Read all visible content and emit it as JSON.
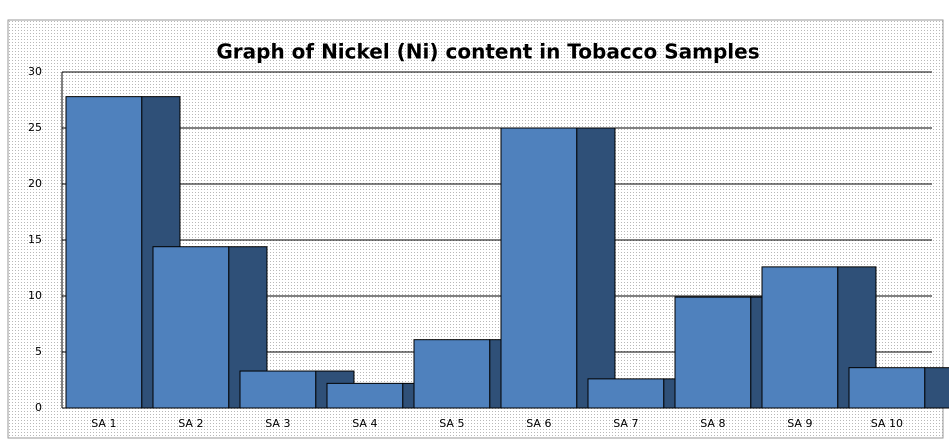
{
  "chart_data": {
    "type": "bar",
    "title": "Graph of Nickel  (Ni) content in Tobacco Samples",
    "categories": [
      "SA 1",
      "SA 2",
      "SA 3",
      "SA 4",
      "SA 5",
      "SA 6",
      "SA 7",
      "SA 8",
      "SA 9",
      "SA 10"
    ],
    "values": [
      27.8,
      14.4,
      3.3,
      2.2,
      6.1,
      25,
      2.6,
      9.9,
      12.6,
      3.6
    ],
    "color": "#4f81bd",
    "side_color": "#2f5078",
    "ylim": [
      0,
      30
    ],
    "yticks": [
      0,
      5,
      10,
      15,
      20,
      25,
      30
    ],
    "grid": true
  }
}
